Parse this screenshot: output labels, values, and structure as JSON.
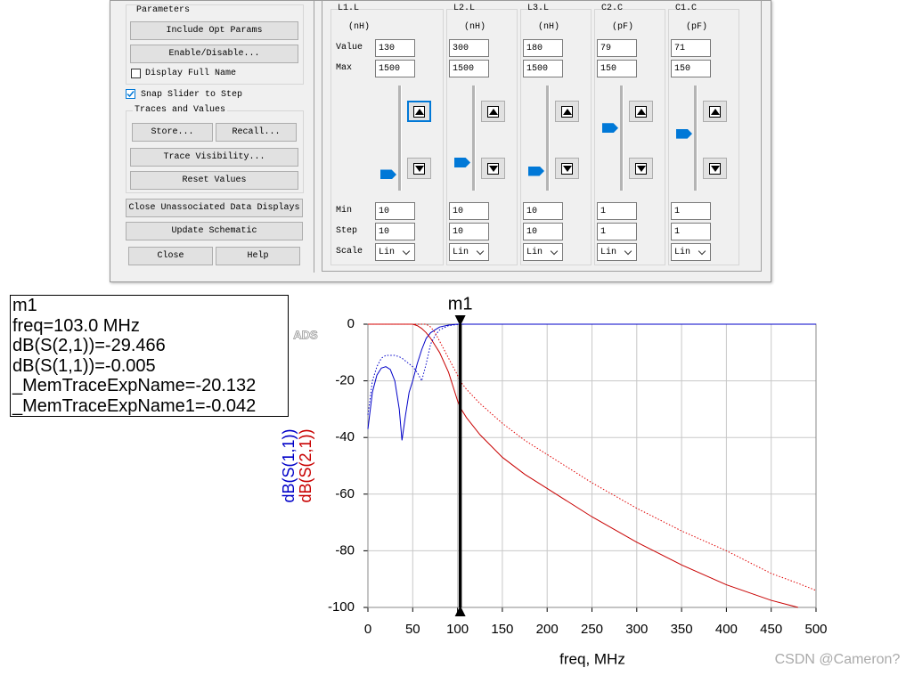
{
  "dialog": {
    "parameters": {
      "title": "Parameters",
      "buttons": [
        "Include Opt Params",
        "Enable/Disable..."
      ],
      "checkbox": "Display Full Name"
    },
    "snap": "Snap Slider to Step",
    "traces": {
      "title": "Traces and Values",
      "buttons": [
        "Store...",
        "Recall...",
        "Trace Visibility...",
        "Reset Values"
      ]
    },
    "buttons": [
      "Close Unassociated Data Displays",
      "Update Schematic",
      "Close",
      "Help"
    ],
    "row_labels": {
      "value": "Value",
      "max": "Max",
      "min": "Min",
      "step": "Step",
      "scale": "Scale"
    },
    "columns": [
      {
        "name": "L1.L",
        "unit": "(nH)",
        "value": 130,
        "max": 1500,
        "min": 10,
        "step": 10,
        "scale": "Lin"
      },
      {
        "name": "L2.L",
        "unit": "(nH)",
        "value": 300,
        "max": 1500,
        "min": 10,
        "step": 10,
        "scale": "Lin"
      },
      {
        "name": "L3.L",
        "unit": "(nH)",
        "value": 180,
        "max": 1500,
        "min": 10,
        "step": 10,
        "scale": "Lin"
      },
      {
        "name": "C2.C",
        "unit": "(pF)",
        "value": 79,
        "max": 150,
        "min": 1,
        "step": 1,
        "scale": "Lin"
      },
      {
        "name": "C1.C",
        "unit": "(pF)",
        "value": 71,
        "max": 150,
        "min": 1,
        "step": 1,
        "scale": "Lin"
      }
    ]
  },
  "chart_data": {
    "type": "line",
    "xlabel": "freq, MHz",
    "watermark": "ADS",
    "x": [
      0,
      5,
      10,
      15,
      20,
      25,
      30,
      35,
      38,
      42,
      46,
      50,
      55,
      60,
      65,
      70,
      75,
      80,
      90,
      100,
      103,
      110,
      125,
      150,
      175,
      200,
      250,
      300,
      350,
      400,
      450,
      480,
      500
    ],
    "series": [
      {
        "name": "dB(S(1,1))",
        "color": "#0000c8",
        "dash": false,
        "values": [
          -37,
          -24,
          -18,
          -15.5,
          -15,
          -16,
          -20,
          -30,
          -41,
          -32,
          -24,
          -20,
          -14,
          -9,
          -5,
          -3,
          -2,
          -1,
          -0.3,
          -0.01,
          -0.005,
          0,
          0,
          0,
          0,
          0,
          0,
          0,
          0,
          0,
          0,
          0,
          0
        ]
      },
      {
        "name": "dB(S(2,1))",
        "color": "#c80000",
        "dash": false,
        "values": [
          0,
          0,
          0,
          0,
          0,
          0,
          0,
          0,
          0,
          0,
          0,
          0,
          -0.5,
          -1.5,
          -3,
          -5,
          -7.5,
          -10,
          -17,
          -27,
          -29.466,
          -33,
          -39,
          -47,
          -53,
          -58,
          -68,
          -77,
          -85,
          -92,
          -97.5,
          -100,
          null
        ]
      },
      {
        "color": "#0000c8",
        "dash": true,
        "values": [
          -32,
          -20,
          -15,
          -12,
          -11,
          -11,
          -11,
          -11.5,
          -12,
          -13,
          -14,
          -15,
          -17,
          -20,
          -14,
          -7,
          -4,
          -2,
          -0.5,
          -0.1,
          -0.042,
          0,
          0,
          0,
          0,
          0,
          0,
          0,
          0,
          0,
          0,
          0,
          0
        ]
      },
      {
        "color": "#e00000",
        "dash": true,
        "values": [
          0,
          0,
          0,
          0,
          0,
          0,
          0,
          0,
          0,
          0,
          0,
          0,
          0,
          0,
          0,
          -1,
          -3,
          -6,
          -12,
          -18,
          -20.132,
          -23,
          -28,
          -35,
          -41,
          -46,
          -56,
          -65,
          -73,
          -80,
          -88,
          -91.5,
          -94
        ]
      }
    ],
    "xlim": [
      0,
      500
    ],
    "xticks": [
      0,
      50,
      100,
      150,
      200,
      250,
      300,
      350,
      400,
      450,
      500
    ],
    "ylim": [
      -100,
      0
    ],
    "yticks": [
      -100,
      -80,
      -60,
      -40,
      -20,
      0
    ],
    "grid": true,
    "marker": {
      "name": "m1",
      "x": 103,
      "readout": [
        "m1",
        "freq=103.0 MHz",
        "dB(S(2,1))=-29.466",
        "dB(S(1,1))=-0.005",
        "_MemTraceExpName=-20.132",
        "_MemTraceExpName1=-0.042"
      ]
    }
  },
  "footer": {
    "watermark": "CSDN @Cameron?"
  }
}
